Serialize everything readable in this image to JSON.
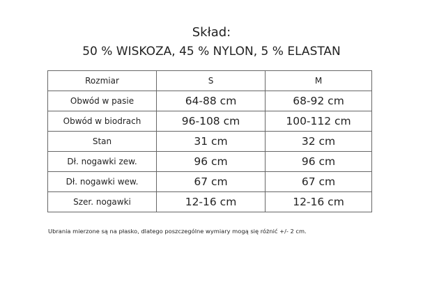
{
  "title": "Skład:",
  "composition": "50 % WISKOZA, 45 % NYLON, 5 % ELASTAN",
  "table": {
    "headers": [
      "Rozmiar",
      "S",
      "M"
    ],
    "rows": [
      [
        "Obwód w pasie",
        "64-88 cm",
        "68-92 cm"
      ],
      [
        "Obwód w biodrach",
        "96-108 cm",
        "100-112 cm"
      ],
      [
        "Stan",
        "31 cm",
        "32 cm"
      ],
      [
        "Dł. nogawki zew.",
        "96 cm",
        "96 cm"
      ],
      [
        "Dł. nogawki wew.",
        "67 cm",
        "67 cm"
      ],
      [
        "Szer. nogawki",
        "12-16 cm",
        "12-16 cm"
      ]
    ]
  },
  "footnote": "Ubrania mierzone są na płasko, dlatego poszczególne wymiary mogą się różnić +/- 2 cm."
}
